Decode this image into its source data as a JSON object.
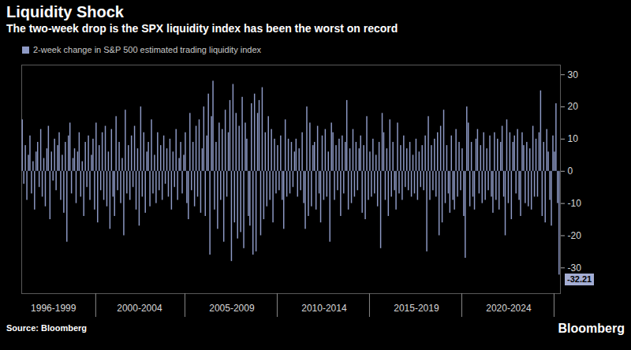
{
  "chart_data": {
    "type": "bar",
    "title": "Liquidity Shock",
    "subtitle": "The two-week drop is the SPX liquidity index has been the worst on record",
    "source": "Source: Bloomberg",
    "logo": "Bloomberg",
    "legend": "top-left",
    "grid": false,
    "ylim": [
      -38,
      33
    ],
    "yticks": [
      -30,
      -20,
      -10,
      0,
      10,
      20,
      30
    ],
    "annotations": [
      {
        "text": "-32.21",
        "value": -32.21
      }
    ],
    "categories": [
      null,
      null,
      null,
      null,
      null,
      null,
      null,
      null,
      null,
      null,
      null,
      null,
      null,
      null,
      null,
      null,
      null,
      null,
      null,
      null,
      "1996-1999",
      null,
      null,
      null,
      null,
      null,
      null,
      null,
      null,
      null,
      null,
      null,
      null,
      null,
      null,
      null,
      null,
      null,
      null,
      null,
      null,
      null,
      null,
      null,
      null,
      null,
      null,
      null,
      null,
      null,
      null,
      null,
      null,
      null,
      null,
      null,
      null,
      null,
      null,
      null,
      null,
      null,
      null,
      null,
      null,
      null,
      null,
      null,
      null,
      null,
      null,
      null,
      null,
      null,
      null,
      null,
      "2000-2004",
      null,
      null,
      null,
      null,
      null,
      null,
      null,
      null,
      null,
      null,
      null,
      null,
      null,
      null,
      null,
      null,
      null,
      null,
      null,
      null,
      null,
      null,
      null,
      null,
      null,
      null,
      null,
      null,
      null,
      null,
      null,
      null,
      null,
      null,
      null,
      null,
      null,
      null,
      null,
      null,
      null,
      null,
      null,
      null,
      null,
      null,
      null,
      null,
      null,
      null,
      null,
      null,
      null,
      null,
      null,
      null,
      null,
      null,
      null,
      "2005-2009",
      null,
      null,
      null,
      null,
      null,
      null,
      null,
      null,
      null,
      null,
      null,
      null,
      null,
      null,
      null,
      null,
      null,
      null,
      null,
      null,
      null,
      null,
      null,
      null,
      null,
      null,
      null,
      null,
      null,
      null,
      null,
      null,
      null,
      null,
      null,
      null,
      null,
      null,
      null,
      null,
      null,
      null,
      null,
      null,
      null,
      null,
      null,
      null,
      null,
      null,
      null,
      null,
      null,
      null,
      null,
      null,
      null,
      null,
      null,
      "2010-2014",
      null,
      null,
      null,
      null,
      null,
      null,
      null,
      null,
      null,
      null,
      null,
      null,
      null,
      null,
      null,
      null,
      null,
      null,
      null,
      null,
      null,
      null,
      null,
      null,
      null,
      null,
      null,
      null,
      null,
      null,
      null,
      null,
      null,
      null,
      null,
      null,
      null,
      null,
      null,
      null,
      null,
      null,
      null,
      null,
      null,
      null,
      null,
      null,
      null,
      null,
      null,
      null,
      null,
      null,
      null,
      null,
      null,
      null,
      null,
      "2015-2019",
      null,
      null,
      null,
      null,
      null,
      null,
      null,
      null,
      null,
      null,
      null,
      null,
      null,
      null,
      null,
      null,
      null,
      null,
      null,
      null,
      null,
      null,
      null,
      null,
      null,
      null,
      null,
      null,
      null,
      null,
      null,
      null,
      null,
      null,
      null,
      null,
      null,
      null,
      null,
      null,
      null,
      null,
      null,
      null,
      null,
      null,
      null,
      null,
      null,
      null,
      null,
      null,
      null,
      null,
      null,
      null,
      null,
      null,
      null,
      "2020-2024",
      null,
      null,
      null,
      null,
      null,
      null,
      null,
      null,
      null,
      null,
      null,
      null,
      null,
      null,
      null,
      null,
      null,
      null,
      null,
      null,
      null,
      null,
      null,
      null,
      null,
      null,
      null,
      null,
      null,
      null,
      null,
      null,
      null
    ],
    "series": [
      {
        "name": "2-week change in S&P 500 estimated trading liquidity index",
        "color": "#8e9ac6",
        "values": [
          16,
          -4,
          8,
          -9,
          5,
          11,
          -7,
          3,
          -12,
          6,
          9,
          -5,
          13,
          -8,
          4,
          -11,
          7,
          14,
          -15,
          6,
          -3,
          10,
          -6,
          8,
          12,
          -9,
          5,
          -13,
          9,
          -22,
          11,
          15,
          -7,
          4,
          7,
          -10,
          6,
          12,
          -8,
          3,
          -14,
          9,
          -5,
          11,
          -9,
          5,
          10,
          -12,
          15,
          -16,
          8,
          -6,
          12,
          -9,
          14,
          -11,
          6,
          -18,
          13,
          -8,
          -14,
          17,
          -6,
          9,
          -10,
          4,
          -20,
          19,
          -7,
          8,
          -9,
          11,
          -5,
          14,
          -12,
          7,
          -17,
          20,
          -8,
          12,
          -13,
          6,
          9,
          -11,
          16,
          -7,
          5,
          -10,
          12,
          -6,
          8,
          -9,
          11,
          -4,
          7,
          -8,
          10,
          -12,
          6,
          -5,
          13,
          -9,
          4,
          9,
          -7,
          5,
          12,
          -10,
          -15,
          18,
          -6,
          9,
          -11,
          14,
          -8,
          16,
          -13,
          7,
          20,
          -14,
          11,
          24,
          -26,
          17,
          28,
          -12,
          9,
          -18,
          15,
          -9,
          13,
          -22,
          19,
          -8,
          12,
          22,
          -28,
          27,
          -16,
          18,
          -21,
          14,
          -19,
          23,
          -24,
          15,
          10,
          -14,
          -17,
          21,
          -26,
          24,
          -25,
          18,
          22,
          -20,
          26,
          -15,
          12,
          -11,
          17,
          -9,
          13,
          -16,
          10,
          -7,
          8,
          -6,
          11,
          -9,
          -18,
          16,
          -8,
          10,
          -7,
          9,
          -5,
          6,
          10,
          -8,
          7,
          -6,
          12,
          -10,
          -18,
          20,
          -14,
          15,
          -11,
          8,
          9,
          -12,
          14,
          -7,
          -16,
          11,
          -9,
          13,
          -8,
          6,
          -22,
          15,
          12,
          -9,
          8,
          -6,
          10,
          -14,
          11,
          -7,
          9,
          22,
          -12,
          7,
          -10,
          13,
          -8,
          9,
          -6,
          7,
          11,
          -13,
          8,
          -15,
          17,
          -9,
          6,
          -8,
          10,
          -7,
          5,
          -11,
          9,
          -24,
          18,
          12,
          -9,
          7,
          -14,
          16,
          -8,
          9,
          -6,
          -12,
          15,
          -7,
          8,
          -9,
          11,
          -5,
          7,
          -6,
          9,
          -8,
          5,
          -7,
          10,
          -9,
          6,
          -5,
          8,
          -6,
          11,
          -25,
          17,
          -9,
          8,
          -6,
          10,
          -8,
          12,
          -20,
          14,
          -16,
          19,
          -10,
          8,
          -7,
          -13,
          11,
          -9,
          -12,
          13,
          -8,
          9,
          -6,
          7,
          -14,
          -27,
          20,
          15,
          -11,
          9,
          -8,
          -12,
          10,
          13,
          -7,
          8,
          -10,
          12,
          -9,
          7,
          -6,
          11,
          -8,
          -13,
          12,
          -9,
          10,
          -12,
          9,
          14,
          -8,
          -20,
          16,
          -10,
          12,
          -15,
          9,
          11,
          -7,
          13,
          -9,
          -14,
          12,
          8,
          -10,
          9,
          -11,
          7,
          -12,
          14,
          -8,
          10,
          -8,
          12,
          25,
          -14,
          9,
          -16,
          13,
          6,
          -9,
          -17,
          11,
          6,
          21,
          -10,
          -32.21
        ]
      }
    ]
  }
}
